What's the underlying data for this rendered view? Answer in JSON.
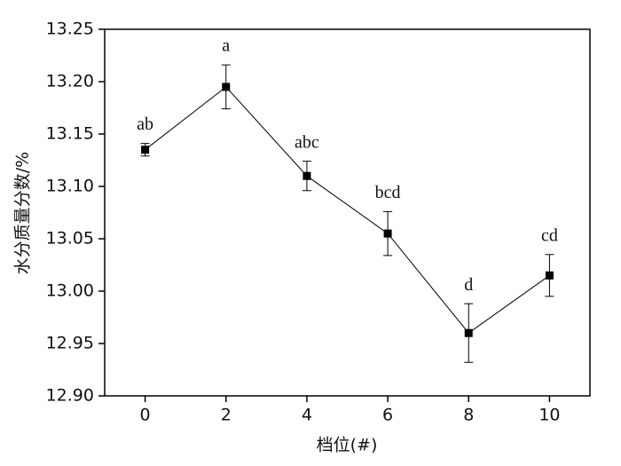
{
  "chart_data": {
    "type": "line",
    "x_label": "档位(#)",
    "y_label": "水分质量分数/%",
    "x": [
      0,
      2,
      4,
      6,
      8,
      10
    ],
    "series": [
      {
        "color": "#000000",
        "values": [
          13.135,
          13.195,
          13.11,
          13.055,
          12.96,
          13.015
        ],
        "errors": [
          0.006,
          0.021,
          0.014,
          0.021,
          0.028,
          0.02
        ],
        "annotations": [
          "ab",
          "a",
          "abc",
          "bcd",
          "d",
          "cd"
        ]
      }
    ],
    "xlim": [
      -1,
      11
    ],
    "xticks": [
      0,
      2,
      4,
      6,
      8,
      10
    ],
    "ylim": [
      12.9,
      13.25
    ],
    "yticks": [
      {
        "value": 12.9,
        "label": "12.90"
      },
      12.95,
      {
        "value": 13.0,
        "label": "13.00"
      },
      13.05,
      {
        "value": 13.1,
        "label": "13.10"
      },
      13.15,
      {
        "value": 13.2,
        "label": "13.20"
      },
      13.25
    ]
  }
}
